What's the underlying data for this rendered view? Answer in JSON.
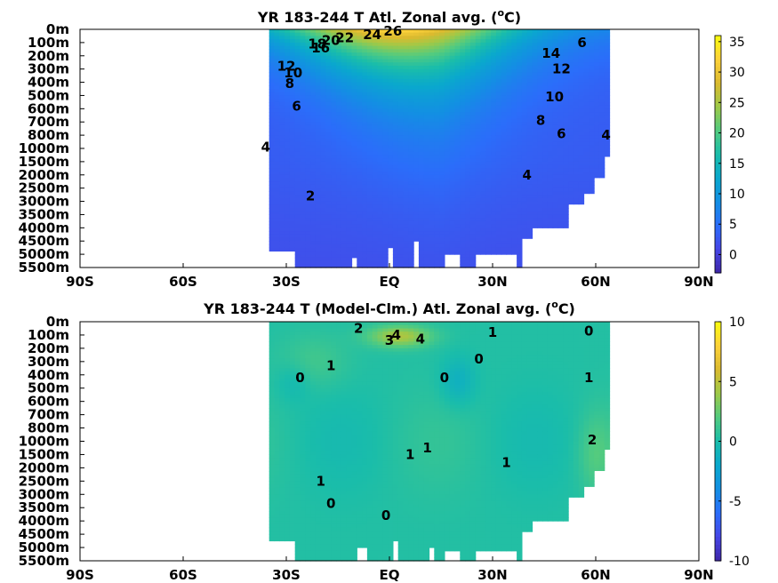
{
  "chart_data": [
    {
      "type": "heatmap",
      "title": "YR 183-244 T Atl. Zonal avg. (",
      "title_sup": "o",
      "title_end": "C)",
      "xticks": [
        "90S",
        "60S",
        "30S",
        "EQ",
        "30N",
        "60N",
        "90N"
      ],
      "yticks": [
        "0m",
        "100m",
        "200m",
        "300m",
        "400m",
        "500m",
        "600m",
        "700m",
        "800m",
        "1000m",
        "1500m",
        "2000m",
        "2500m",
        "3000m",
        "3500m",
        "4000m",
        "4500m",
        "5000m",
        "5500m"
      ],
      "colorbar": {
        "range": [
          -3,
          36
        ],
        "ticks": [
          "35",
          "30",
          "25",
          "20",
          "15",
          "10",
          "5",
          "0"
        ],
        "colormap": "parula"
      },
      "contour_labels": [
        {
          "text": "26",
          "lat": 1,
          "depth_idx": 0.15
        },
        {
          "text": "24",
          "lat": -5,
          "depth_idx": 0.4
        },
        {
          "text": "22",
          "lat": -13,
          "depth_idx": 0.65
        },
        {
          "text": "20",
          "lat": -17,
          "depth_idx": 0.85
        },
        {
          "text": "18",
          "lat": -21,
          "depth_idx": 1.1
        },
        {
          "text": "16",
          "lat": -20,
          "depth_idx": 1.4
        },
        {
          "text": "14",
          "lat": 47,
          "depth_idx": 1.8
        },
        {
          "text": "12",
          "lat": -30,
          "depth_idx": 2.8
        },
        {
          "text": "12",
          "lat": 50,
          "depth_idx": 3.0
        },
        {
          "text": "10",
          "lat": -28,
          "depth_idx": 3.3
        },
        {
          "text": "8",
          "lat": -29,
          "depth_idx": 4.1
        },
        {
          "text": "6",
          "lat": -27,
          "depth_idx": 5.8
        },
        {
          "text": "10",
          "lat": 48,
          "depth_idx": 5.1
        },
        {
          "text": "8",
          "lat": 44,
          "depth_idx": 6.9
        },
        {
          "text": "6",
          "lat": 56,
          "depth_idx": 1.0
        },
        {
          "text": "6",
          "lat": 50,
          "depth_idx": 7.9
        },
        {
          "text": "4",
          "lat": 63,
          "depth_idx": 8.0
        },
        {
          "text": "4",
          "lat": -36,
          "depth_idx": 8.9
        },
        {
          "text": "4",
          "lat": 40,
          "depth_idx": 11.0
        },
        {
          "text": "2",
          "lat": -23,
          "depth_idx": 12.6
        }
      ]
    },
    {
      "type": "heatmap",
      "title": "YR 183-244 T (Model-Clm.) Atl. Zonal avg. (",
      "title_sup": "o",
      "title_end": "C)",
      "xticks": [
        "90S",
        "60S",
        "30S",
        "EQ",
        "30N",
        "60N",
        "90N"
      ],
      "yticks": [
        "0m",
        "100m",
        "200m",
        "300m",
        "400m",
        "500m",
        "600m",
        "700m",
        "800m",
        "1000m",
        "1500m",
        "2000m",
        "2500m",
        "3000m",
        "3500m",
        "4000m",
        "4500m",
        "5000m",
        "5500m"
      ],
      "colorbar": {
        "range": [
          -10,
          10
        ],
        "ticks": [
          "10",
          "5",
          "0",
          "-5",
          "-10"
        ],
        "colormap": "parula"
      },
      "contour_labels": [
        {
          "text": "2",
          "lat": -9,
          "depth_idx": 0.5
        },
        {
          "text": "3",
          "lat": 0,
          "depth_idx": 1.4
        },
        {
          "text": "4",
          "lat": 2,
          "depth_idx": 1.0
        },
        {
          "text": "4",
          "lat": 9,
          "depth_idx": 1.3
        },
        {
          "text": "1",
          "lat": 30,
          "depth_idx": 0.8
        },
        {
          "text": "0",
          "lat": 58,
          "depth_idx": 0.7
        },
        {
          "text": "0",
          "lat": 26,
          "depth_idx": 2.8
        },
        {
          "text": "1",
          "lat": -17,
          "depth_idx": 3.3
        },
        {
          "text": "0",
          "lat": -26,
          "depth_idx": 4.2
        },
        {
          "text": "0",
          "lat": 16,
          "depth_idx": 4.2
        },
        {
          "text": "1",
          "lat": 58,
          "depth_idx": 4.2
        },
        {
          "text": "2",
          "lat": 59,
          "depth_idx": 8.9
        },
        {
          "text": "1",
          "lat": 11,
          "depth_idx": 9.5
        },
        {
          "text": "1",
          "lat": 6,
          "depth_idx": 10.0
        },
        {
          "text": "1",
          "lat": 34,
          "depth_idx": 10.6
        },
        {
          "text": "1",
          "lat": -20,
          "depth_idx": 12.0
        },
        {
          "text": "0",
          "lat": -17,
          "depth_idx": 13.7
        },
        {
          "text": "0",
          "lat": -1,
          "depth_idx": 14.6
        }
      ]
    }
  ]
}
